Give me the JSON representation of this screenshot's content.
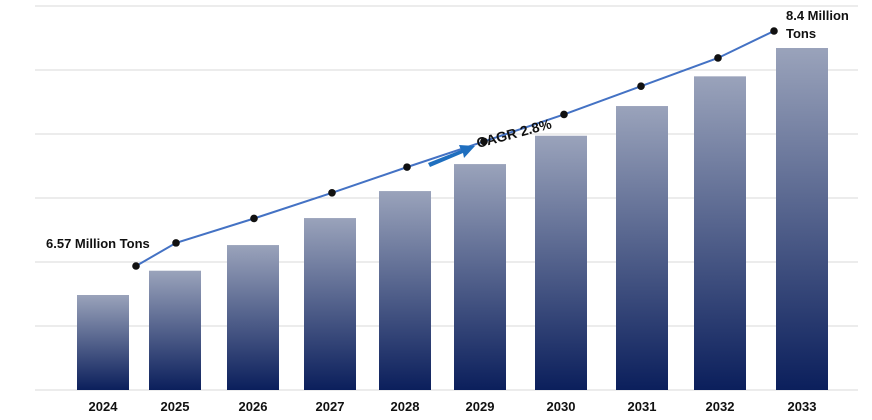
{
  "chart_data": {
    "type": "bar",
    "title": "",
    "xlabel": "",
    "ylabel": "",
    "categories": [
      "2024",
      "2025",
      "2026",
      "2027",
      "2028",
      "2029",
      "2030",
      "2031",
      "2032",
      "2033"
    ],
    "series": [
      {
        "values": [
          6.57,
          6.75,
          6.94,
          7.14,
          7.34,
          7.54,
          7.75,
          7.97,
          8.19,
          8.4
        ]
      }
    ],
    "trend_line": [
      6.57,
      6.75,
      6.94,
      7.14,
      7.34,
      7.54,
      7.75,
      7.97,
      8.19,
      8.4
    ],
    "grid": true,
    "legend": "none",
    "annotations": {
      "start_label": "6.57 Million Tons",
      "end_label_line1": "8.4 Million",
      "end_label_line2": "Tons",
      "cagr": "CAGR 2.8%"
    },
    "colors": {
      "bar_top": "#9aa3bb",
      "bar_bottom": "#0b1f5c",
      "line": "#4472c4",
      "point": "#111111",
      "arrow": "#1f6fbf",
      "grid": "#d9d9d9"
    }
  }
}
